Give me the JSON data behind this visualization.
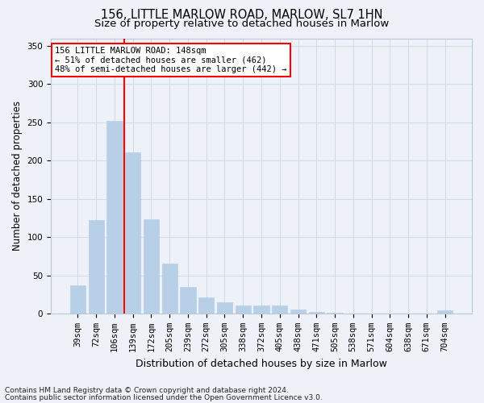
{
  "title1": "156, LITTLE MARLOW ROAD, MARLOW, SL7 1HN",
  "title2": "Size of property relative to detached houses in Marlow",
  "xlabel": "Distribution of detached houses by size in Marlow",
  "ylabel": "Number of detached properties",
  "bar_labels": [
    "39sqm",
    "72sqm",
    "106sqm",
    "139sqm",
    "172sqm",
    "205sqm",
    "239sqm",
    "272sqm",
    "305sqm",
    "338sqm",
    "372sqm",
    "405sqm",
    "438sqm",
    "471sqm",
    "505sqm",
    "538sqm",
    "571sqm",
    "604sqm",
    "638sqm",
    "671sqm",
    "704sqm"
  ],
  "bar_values": [
    37,
    122,
    252,
    211,
    123,
    65,
    35,
    21,
    15,
    11,
    11,
    10,
    5,
    2,
    1,
    0,
    0,
    0,
    0,
    0,
    4
  ],
  "bar_color": "#b8cfe8",
  "bar_edgecolor": "#b8cfe8",
  "grid_color": "#d0daea",
  "background_color": "#eef2f8",
  "vline_color": "red",
  "vline_xindex": 2.55,
  "annotation_text": "156 LITTLE MARLOW ROAD: 148sqm\n← 51% of detached houses are smaller (462)\n48% of semi-detached houses are larger (442) →",
  "annotation_box_facecolor": "white",
  "annotation_box_edgecolor": "red",
  "ylim": [
    0,
    360
  ],
  "yticks": [
    0,
    50,
    100,
    150,
    200,
    250,
    300,
    350
  ],
  "footer1": "Contains HM Land Registry data © Crown copyright and database right 2024.",
  "footer2": "Contains public sector information licensed under the Open Government Licence v3.0.",
  "title1_fontsize": 10.5,
  "title2_fontsize": 9.5,
  "ylabel_fontsize": 8.5,
  "xlabel_fontsize": 9,
  "tick_fontsize": 7.5,
  "footer_fontsize": 6.5,
  "ann_fontsize": 7.5
}
